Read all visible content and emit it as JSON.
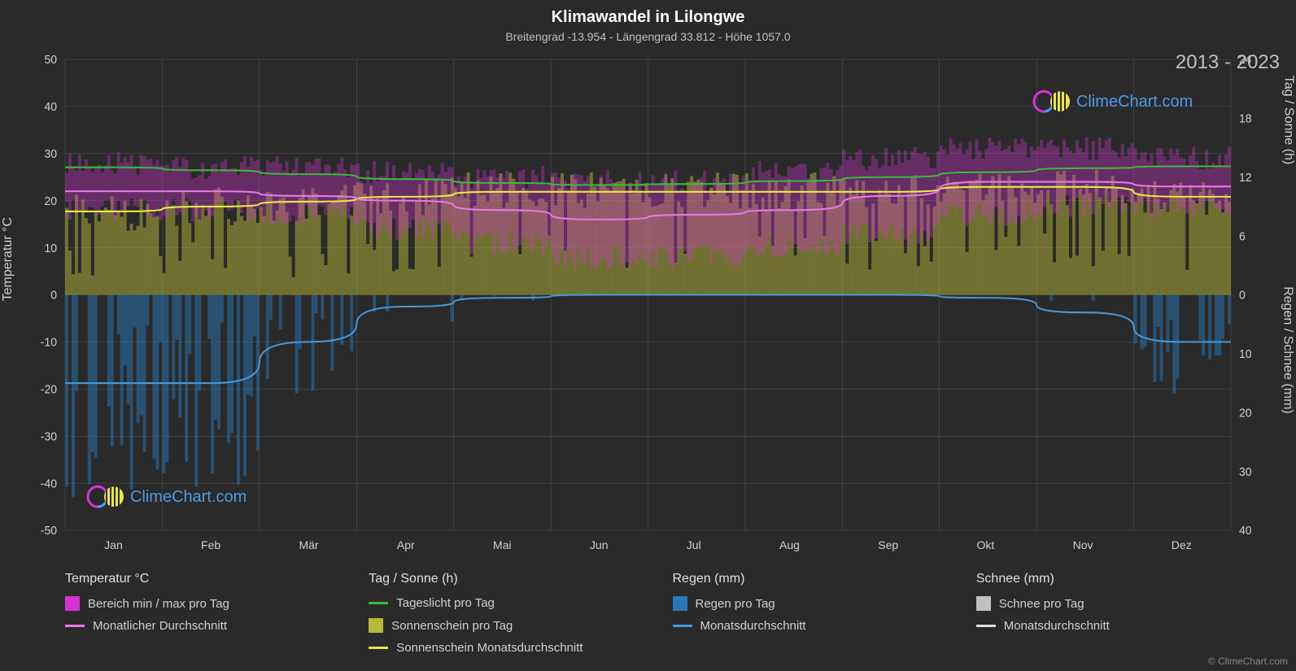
{
  "title": "Klimawandel in Lilongwe",
  "subtitle": "Breitengrad -13.954 - Längengrad 33.812 - Höhe 1057.0",
  "year_range": "2013 - 2023",
  "copyright": "© ClimeChart.com",
  "logo_text": "ClimeChart.com",
  "axes": {
    "left_label": "Temperatur °C",
    "right_label_top": "Tag / Sonne (h)",
    "right_label_bottom": "Regen / Schnee (mm)",
    "left_ticks": [
      50,
      40,
      30,
      20,
      10,
      0,
      -10,
      -20,
      -30,
      -40,
      -50
    ],
    "right_top_ticks": [
      24,
      18,
      12,
      6,
      0
    ],
    "right_bottom_ticks": [
      0,
      10,
      20,
      30,
      40
    ],
    "months": [
      "Jan",
      "Feb",
      "Mär",
      "Apr",
      "Mai",
      "Jun",
      "Jul",
      "Aug",
      "Sep",
      "Okt",
      "Nov",
      "Dez"
    ]
  },
  "colors": {
    "background": "#2a2a2a",
    "grid": "#555555",
    "temp_range": "#d633d6",
    "temp_avg": "#e878e8",
    "daylight": "#3cb83c",
    "sunshine_bars": "#b8b838",
    "sunshine_avg": "#e8e848",
    "rain_bars": "#2878b8",
    "rain_avg": "#4898d8",
    "snow_bars": "#c0c0c0",
    "snow_avg": "#e0e0e0",
    "text": "#d0d0d0"
  },
  "data": {
    "temp_max": [
      28,
      27,
      27,
      26,
      25,
      24,
      24,
      26,
      29,
      31,
      31,
      29
    ],
    "temp_min": [
      18,
      18,
      17,
      14,
      11,
      8,
      8,
      10,
      13,
      17,
      19,
      19
    ],
    "temp_avg": [
      22,
      22,
      21,
      20,
      18,
      16,
      17,
      18,
      21,
      24,
      24,
      23
    ],
    "daylight": [
      13.0,
      12.7,
      12.3,
      11.8,
      11.4,
      11.2,
      11.3,
      11.6,
      12.0,
      12.5,
      12.9,
      13.1
    ],
    "sunshine": [
      8.5,
      9.0,
      9.5,
      10.0,
      10.5,
      10.5,
      10.5,
      10.5,
      10.5,
      11.0,
      11.0,
      10.0
    ],
    "rain": [
      15,
      15,
      8,
      2,
      0.5,
      0,
      0,
      0,
      0,
      0.5,
      3,
      8
    ]
  },
  "legend": {
    "group1_title": "Temperatur °C",
    "group1_items": [
      {
        "label": "Bereich min / max pro Tag",
        "type": "swatch",
        "color": "#d633d6"
      },
      {
        "label": "Monatlicher Durchschnitt",
        "type": "line",
        "color": "#e878e8"
      }
    ],
    "group2_title": "Tag / Sonne (h)",
    "group2_items": [
      {
        "label": "Tageslicht pro Tag",
        "type": "line",
        "color": "#3cb83c"
      },
      {
        "label": "Sonnenschein pro Tag",
        "type": "swatch",
        "color": "#b8b838"
      },
      {
        "label": "Sonnenschein Monatsdurchschnitt",
        "type": "line",
        "color": "#e8e848"
      }
    ],
    "group3_title": "Regen (mm)",
    "group3_items": [
      {
        "label": "Regen pro Tag",
        "type": "swatch",
        "color": "#2878b8"
      },
      {
        "label": "Monatsdurchschnitt",
        "type": "line",
        "color": "#4898d8"
      }
    ],
    "group4_title": "Schnee (mm)",
    "group4_items": [
      {
        "label": "Schnee pro Tag",
        "type": "swatch",
        "color": "#c0c0c0"
      },
      {
        "label": "Monatsdurchschnitt",
        "type": "line",
        "color": "#e0e0e0"
      }
    ]
  }
}
